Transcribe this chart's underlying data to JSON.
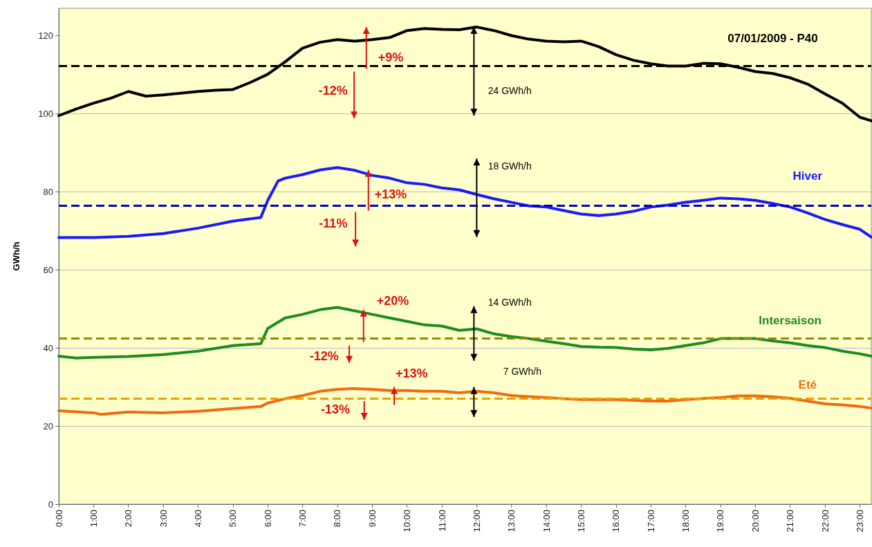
{
  "chart_data": {
    "type": "line",
    "ylabel": "GWh/h",
    "xlim": [
      0,
      23.33
    ],
    "ylim": [
      0,
      127
    ],
    "xticks": [
      {
        "value": 0,
        "label": "0:00"
      },
      {
        "value": 1,
        "label": "1:00"
      },
      {
        "value": 2,
        "label": "2:00"
      },
      {
        "value": 3,
        "label": "3:00"
      },
      {
        "value": 4,
        "label": "4:00"
      },
      {
        "value": 5,
        "label": "5:00"
      },
      {
        "value": 6,
        "label": "6:00"
      },
      {
        "value": 7,
        "label": "7:00"
      },
      {
        "value": 8,
        "label": "8:00"
      },
      {
        "value": 9,
        "label": "9:00"
      },
      {
        "value": 10,
        "label": "10:00"
      },
      {
        "value": 11,
        "label": "11:00"
      },
      {
        "value": 12,
        "label": "12:00"
      },
      {
        "value": 13,
        "label": "13:00"
      },
      {
        "value": 14,
        "label": "14:00"
      },
      {
        "value": 15,
        "label": "15:00"
      },
      {
        "value": 16,
        "label": "16:00"
      },
      {
        "value": 17,
        "label": "17:00"
      },
      {
        "value": 18,
        "label": "18:00"
      },
      {
        "value": 19,
        "label": "19:00"
      },
      {
        "value": 20,
        "label": "20:00"
      },
      {
        "value": 21,
        "label": "21:00"
      },
      {
        "value": 22,
        "label": "22:00"
      },
      {
        "value": 23,
        "label": "23:00"
      }
    ],
    "yticks": [
      0,
      20,
      40,
      60,
      80,
      100,
      120
    ],
    "grid": "y",
    "legend": false,
    "marker": "none",
    "line_style": "solid",
    "series": [
      {
        "name": "07/01/2009 - P40",
        "color": "#000000",
        "x": [
          0,
          0.5,
          1,
          1.5,
          2,
          2.5,
          3,
          4,
          4.5,
          5,
          5.5,
          6,
          6.5,
          7,
          7.5,
          8,
          8.5,
          9,
          9.5,
          10,
          10.5,
          11,
          11.5,
          12,
          12.5,
          13,
          13.5,
          14,
          14.5,
          15,
          15.5,
          16,
          16.5,
          17,
          17.5,
          18,
          18.5,
          19,
          19.5,
          20,
          20.5,
          21,
          21.5,
          22,
          22.5,
          23,
          23.33
        ],
        "values": [
          99.5,
          101.2,
          102.7,
          104,
          105.7,
          104.5,
          104.8,
          105.7,
          106,
          106.2,
          108,
          110.1,
          113.3,
          116.8,
          118.3,
          119,
          118.6,
          119,
          119.5,
          121.3,
          121.8,
          121.6,
          121.5,
          122.2,
          121.3,
          120,
          119.1,
          118.6,
          118.4,
          118.6,
          117.2,
          115.1,
          113.7,
          112.8,
          112.2,
          112.2,
          112.9,
          112.8,
          111.9,
          110.8,
          110.3,
          109.2,
          107.6,
          105.1,
          102.7,
          99.1,
          98.2
        ]
      },
      {
        "name": "Hiver",
        "color": "#1a1aff",
        "x": [
          0,
          1,
          2,
          3,
          4,
          5,
          5.8,
          6,
          6.3,
          6.5,
          7,
          7.5,
          8,
          8.5,
          9,
          9.5,
          10,
          10.5,
          11,
          11.5,
          12,
          12.5,
          13,
          13.5,
          14,
          14.5,
          15,
          15.5,
          16,
          16.5,
          17,
          17.5,
          18,
          18.5,
          19,
          19.5,
          20,
          20.5,
          21,
          21.5,
          22,
          22.5,
          23,
          23.33
        ],
        "values": [
          68.3,
          68.3,
          68.6,
          69.3,
          70.7,
          72.5,
          73.4,
          77.8,
          82.8,
          83.5,
          84.4,
          85.6,
          86.2,
          85.5,
          84.2,
          83.5,
          82.3,
          81.9,
          81,
          80.5,
          79.3,
          78.2,
          77.3,
          76.4,
          76.1,
          75.2,
          74.3,
          73.9,
          74.3,
          75,
          76.1,
          76.6,
          77.3,
          77.8,
          78.4,
          78.2,
          77.8,
          77,
          76.1,
          74.6,
          72.9,
          71.6,
          70.4,
          68.4
        ]
      },
      {
        "name": "Intersaison",
        "color": "#1e8c1e",
        "x": [
          0,
          0.5,
          1,
          2,
          3,
          4,
          5,
          5.8,
          6,
          6.5,
          7,
          7.5,
          8,
          8.5,
          9,
          9.5,
          10,
          10.5,
          11,
          11.5,
          12,
          12.5,
          13,
          13.5,
          14,
          14.5,
          15,
          15.5,
          16,
          16.5,
          17,
          17.5,
          18,
          18.5,
          19,
          19.5,
          20,
          20.5,
          21,
          21.5,
          22,
          22.5,
          23,
          23.33
        ],
        "values": [
          37.9,
          37.4,
          37.6,
          37.8,
          38.3,
          39.2,
          40.6,
          41.1,
          45,
          47.7,
          48.6,
          49.8,
          50.4,
          49.5,
          48.6,
          47.7,
          46.8,
          45.9,
          45.6,
          44.5,
          44.9,
          43.6,
          42.9,
          42.4,
          41.7,
          41.1,
          40.4,
          40.2,
          40.1,
          39.7,
          39.5,
          39.9,
          40.6,
          41.3,
          42.4,
          42.4,
          42.4,
          41.8,
          41.3,
          40.6,
          40.1,
          39.2,
          38.5,
          37.9
        ]
      },
      {
        "name": "Eté",
        "color": "#f26a10",
        "x": [
          0,
          1,
          1.2,
          2,
          3,
          4,
          5,
          5.8,
          6,
          6.5,
          7,
          7.5,
          8,
          8.5,
          9,
          9.5,
          10,
          10.5,
          11,
          11.5,
          12,
          12.5,
          13,
          14,
          14.5,
          15,
          16,
          17,
          17.5,
          18,
          19,
          19.5,
          20,
          20.5,
          21,
          21.5,
          22,
          22.5,
          23,
          23.33
        ],
        "values": [
          23.9,
          23.4,
          23,
          23.6,
          23.4,
          23.8,
          24.5,
          25,
          25.9,
          27,
          27.8,
          28.9,
          29.4,
          29.6,
          29.4,
          29.1,
          29.1,
          28.9,
          28.9,
          28.5,
          28.9,
          28.5,
          27.8,
          27.3,
          27,
          26.8,
          26.8,
          26.4,
          26.4,
          26.8,
          27.3,
          27.7,
          27.7,
          27.5,
          27.1,
          26.4,
          25.7,
          25.4,
          25,
          24.6
        ]
      }
    ],
    "ref_lines": [
      {
        "axis": "y",
        "value": 112.2,
        "color": "#000000",
        "line_style": "dashed"
      },
      {
        "axis": "y",
        "value": 76.4,
        "color": "#0000cc",
        "line_style": "dashed"
      },
      {
        "axis": "y",
        "value": 42.4,
        "color": "#8c8c00",
        "line_style": "dashed"
      },
      {
        "axis": "y",
        "value": 27,
        "color": "#e6a000",
        "line_style": "dashed"
      }
    ],
    "annotations": [
      "+9%",
      "-12%",
      "24 GWh/h",
      "18 GWh/h",
      "+13%",
      "-11%",
      "14 GWh/h",
      "+20%",
      "-12%",
      "7 GWh/h",
      "+13%",
      "-13%"
    ]
  }
}
